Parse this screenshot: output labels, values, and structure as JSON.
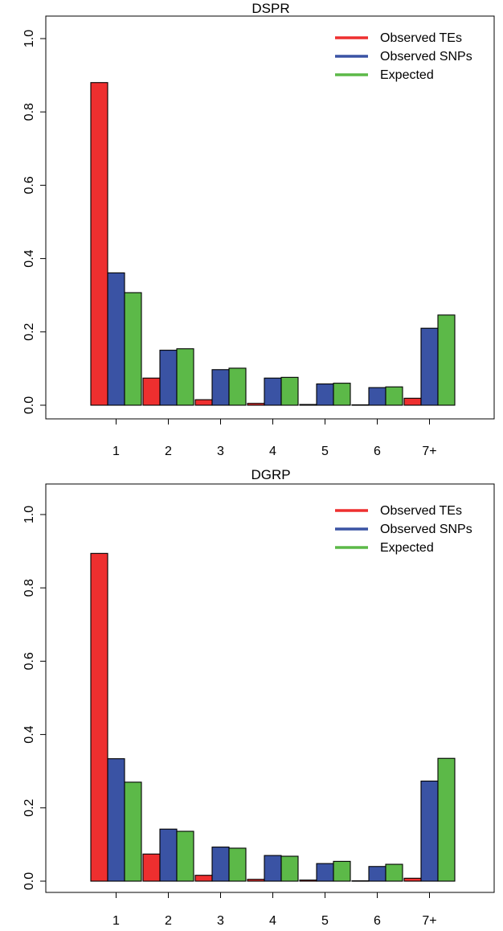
{
  "chart_data": [
    {
      "type": "bar",
      "title": "DSPR",
      "categories": [
        "1",
        "2",
        "3",
        "4",
        "5",
        "6",
        "7+"
      ],
      "ylim": [
        0,
        1
      ],
      "yticks": [
        "0.0",
        "0.2",
        "0.4",
        "0.6",
        "0.8",
        "1.0"
      ],
      "legend_position": "top-right",
      "series": [
        {
          "name": "Observed TEs",
          "color": "#ee2f2f",
          "values": [
            0.88,
            0.074,
            0.015,
            0.005,
            0.002,
            0.001,
            0.019
          ]
        },
        {
          "name": "Observed SNPs",
          "color": "#3a53a4",
          "values": [
            0.361,
            0.15,
            0.097,
            0.074,
            0.058,
            0.048,
            0.21
          ]
        },
        {
          "name": "Expected",
          "color": "#5cb948",
          "values": [
            0.307,
            0.154,
            0.101,
            0.076,
            0.06,
            0.05,
            0.246
          ]
        }
      ]
    },
    {
      "type": "bar",
      "title": "DGRP",
      "categories": [
        "1",
        "2",
        "3",
        "4",
        "5",
        "6",
        "7+"
      ],
      "ylim": [
        0,
        1
      ],
      "yticks": [
        "0.0",
        "0.2",
        "0.4",
        "0.6",
        "0.8",
        "1.0"
      ],
      "legend_position": "top-right",
      "series": [
        {
          "name": "Observed TEs",
          "color": "#ee2f2f",
          "values": [
            0.894,
            0.074,
            0.016,
            0.005,
            0.003,
            0.001,
            0.008
          ]
        },
        {
          "name": "Observed SNPs",
          "color": "#3a53a4",
          "values": [
            0.334,
            0.142,
            0.093,
            0.07,
            0.048,
            0.04,
            0.273
          ]
        },
        {
          "name": "Expected",
          "color": "#5cb948",
          "values": [
            0.27,
            0.136,
            0.09,
            0.068,
            0.054,
            0.046,
            0.335
          ]
        }
      ]
    }
  ]
}
